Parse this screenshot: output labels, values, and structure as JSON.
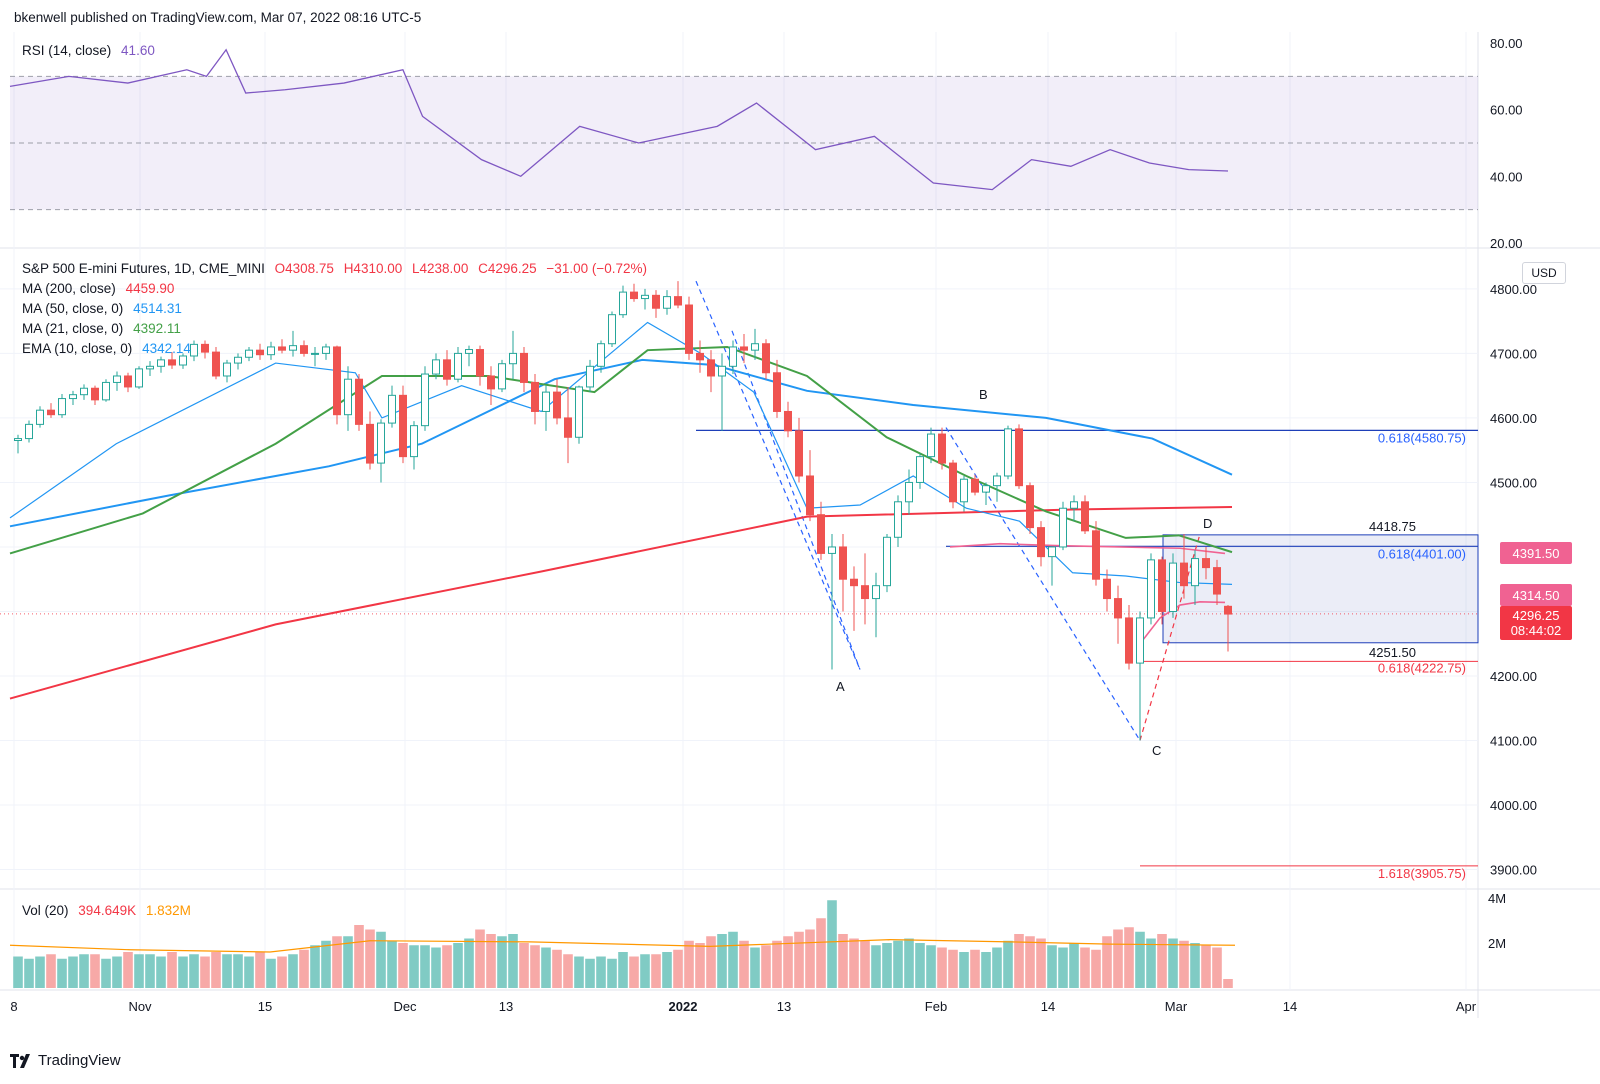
{
  "header": {
    "published": "bkenwell published on TradingView.com, Mar 07, 2022 08:16 UTC-5"
  },
  "rsi": {
    "label": "RSI (14, close)",
    "value": "41.60",
    "color": "#7e57c2",
    "axis_labels": [
      "80.00",
      "60.00",
      "40.00",
      "20.00"
    ]
  },
  "main": {
    "symbol": "S&P 500 E-mini Futures, 1D, CME_MINI",
    "ohlc": {
      "o": "O4308.75",
      "h": "H4310.00",
      "l": "L4238.00",
      "c": "C4296.25",
      "chg": "−31.00 (−0.72%)"
    },
    "mas": [
      {
        "label": "MA (200, close)",
        "value": "4459.90",
        "color": "#f23645"
      },
      {
        "label": "MA (50, close, 0)",
        "value": "4514.31",
        "color": "#2196f3"
      },
      {
        "label": "MA (21, close, 0)",
        "value": "4392.11",
        "color": "#43a047"
      },
      {
        "label": "EMA (10, close, 0)",
        "value": "4342.14",
        "color": "#2196f3"
      }
    ],
    "currency": "USD",
    "axis_labels": [
      "4800.00",
      "4700.00",
      "4600.00",
      "4500.00",
      "4200.00",
      "4100.00",
      "4000.00",
      "3900.00"
    ],
    "tags": [
      {
        "text": "4391.50",
        "color": "#f06292"
      },
      {
        "text": "4314.50",
        "color": "#f06292"
      },
      {
        "text": "4296.25",
        "sub": "08:44:02",
        "color": "#f23645"
      }
    ],
    "annotations": {
      "points": [
        "A",
        "B",
        "C",
        "D"
      ],
      "fib_4580": "0.618(4580.75)",
      "fib_4401": "0.618(4401.00)",
      "fib_4222": "0.618(4222.75)",
      "fib_3905": "1.618(3905.75)",
      "range_top": "4418.75",
      "range_bottom": "4251.50"
    }
  },
  "volume": {
    "label": "Vol (20)",
    "value": "394.649K",
    "ma_value": "1.832M",
    "axis_labels": [
      "4M",
      "2M"
    ]
  },
  "xaxis": [
    "8",
    "Nov",
    "15",
    "Dec",
    "13",
    "2022",
    "13",
    "Feb",
    "14",
    "Mar",
    "14",
    "Apr"
  ],
  "footer": {
    "brand": "TradingView"
  },
  "chart_data": {
    "type": "candlestick",
    "title": "S&P 500 E-mini Futures, 1D, CME_MINI",
    "ylim": [
      3850,
      4830
    ],
    "candles": [
      [
        4565,
        4574,
        4545,
        4568
      ],
      [
        4568,
        4596,
        4562,
        4590
      ],
      [
        4590,
        4618,
        4585,
        4612
      ],
      [
        4612,
        4623,
        4600,
        4605
      ],
      [
        4605,
        4637,
        4600,
        4630
      ],
      [
        4630,
        4642,
        4620,
        4636
      ],
      [
        4636,
        4652,
        4628,
        4646
      ],
      [
        4646,
        4650,
        4620,
        4628
      ],
      [
        4628,
        4660,
        4625,
        4655
      ],
      [
        4655,
        4672,
        4642,
        4665
      ],
      [
        4665,
        4670,
        4640,
        4648
      ],
      [
        4648,
        4680,
        4645,
        4676
      ],
      [
        4676,
        4688,
        4665,
        4680
      ],
      [
        4680,
        4695,
        4670,
        4690
      ],
      [
        4690,
        4702,
        4676,
        4682
      ],
      [
        4682,
        4700,
        4676,
        4696
      ],
      [
        4696,
        4720,
        4688,
        4714
      ],
      [
        4714,
        4720,
        4692,
        4702
      ],
      [
        4702,
        4710,
        4660,
        4665
      ],
      [
        4665,
        4690,
        4655,
        4685
      ],
      [
        4685,
        4700,
        4675,
        4694
      ],
      [
        4694,
        4710,
        4688,
        4705
      ],
      [
        4705,
        4715,
        4690,
        4698
      ],
      [
        4698,
        4718,
        4690,
        4710
      ],
      [
        4710,
        4722,
        4700,
        4705
      ],
      [
        4705,
        4735,
        4695,
        4712
      ],
      [
        4712,
        4720,
        4695,
        4700
      ],
      [
        4700,
        4710,
        4680,
        4700
      ],
      [
        4700,
        4715,
        4690,
        4710
      ],
      [
        4710,
        4712,
        4590,
        4605
      ],
      [
        4605,
        4680,
        4580,
        4660
      ],
      [
        4660,
        4668,
        4580,
        4590
      ],
      [
        4590,
        4610,
        4520,
        4530
      ],
      [
        4530,
        4598,
        4500,
        4592
      ],
      [
        4592,
        4650,
        4585,
        4635
      ],
      [
        4635,
        4650,
        4530,
        4540
      ],
      [
        4540,
        4595,
        4520,
        4588
      ],
      [
        4588,
        4680,
        4580,
        4668
      ],
      [
        4668,
        4700,
        4660,
        4690
      ],
      [
        4690,
        4705,
        4650,
        4660
      ],
      [
        4660,
        4710,
        4655,
        4700
      ],
      [
        4700,
        4712,
        4680,
        4706
      ],
      [
        4706,
        4712,
        4650,
        4665
      ],
      [
        4665,
        4680,
        4620,
        4645
      ],
      [
        4645,
        4690,
        4640,
        4684
      ],
      [
        4684,
        4735,
        4660,
        4700
      ],
      [
        4700,
        4710,
        4640,
        4655
      ],
      [
        4655,
        4668,
        4590,
        4610
      ],
      [
        4610,
        4650,
        4580,
        4640
      ],
      [
        4640,
        4660,
        4590,
        4600
      ],
      [
        4600,
        4648,
        4530,
        4570
      ],
      [
        4570,
        4650,
        4560,
        4648
      ],
      [
        4648,
        4690,
        4640,
        4680
      ],
      [
        4680,
        4720,
        4670,
        4715
      ],
      [
        4715,
        4765,
        4710,
        4760
      ],
      [
        4760,
        4805,
        4755,
        4795
      ],
      [
        4795,
        4808,
        4780,
        4785
      ],
      [
        4785,
        4800,
        4768,
        4790
      ],
      [
        4790,
        4798,
        4755,
        4770
      ],
      [
        4770,
        4798,
        4760,
        4788
      ],
      [
        4788,
        4812,
        4770,
        4775
      ],
      [
        4775,
        4788,
        4690,
        4700
      ],
      [
        4700,
        4720,
        4670,
        4690
      ],
      [
        4690,
        4705,
        4640,
        4665
      ],
      [
        4665,
        4700,
        4580,
        4680
      ],
      [
        4680,
        4720,
        4668,
        4710
      ],
      [
        4710,
        4730,
        4685,
        4705
      ],
      [
        4705,
        4738,
        4690,
        4715
      ],
      [
        4715,
        4722,
        4660,
        4670
      ],
      [
        4670,
        4690,
        4600,
        4610
      ],
      [
        4610,
        4625,
        4570,
        4580
      ],
      [
        4580,
        4600,
        4500,
        4510
      ],
      [
        4510,
        4550,
        4440,
        4450
      ],
      [
        4450,
        4470,
        4380,
        4390
      ],
      [
        4390,
        4420,
        4210,
        4400
      ],
      [
        4400,
        4420,
        4300,
        4350
      ],
      [
        4350,
        4370,
        4270,
        4340
      ],
      [
        4340,
        4390,
        4280,
        4320
      ],
      [
        4320,
        4360,
        4260,
        4340
      ],
      [
        4340,
        4420,
        4330,
        4415
      ],
      [
        4415,
        4480,
        4400,
        4470
      ],
      [
        4470,
        4520,
        4450,
        4500
      ],
      [
        4500,
        4545,
        4490,
        4540
      ],
      [
        4540,
        4585,
        4530,
        4575
      ],
      [
        4575,
        4585,
        4520,
        4530
      ],
      [
        4530,
        4535,
        4460,
        4470
      ],
      [
        4470,
        4510,
        4455,
        4505
      ],
      [
        4505,
        4512,
        4480,
        4485
      ],
      [
        4485,
        4500,
        4465,
        4495
      ],
      [
        4495,
        4515,
        4470,
        4510
      ],
      [
        4510,
        4588,
        4505,
        4583
      ],
      [
        4583,
        4590,
        4490,
        4495
      ],
      [
        4495,
        4500,
        4420,
        4430
      ],
      [
        4430,
        4440,
        4370,
        4385
      ],
      [
        4385,
        4400,
        4340,
        4400
      ],
      [
        4400,
        4470,
        4395,
        4460
      ],
      [
        4460,
        4480,
        4440,
        4470
      ],
      [
        4470,
        4480,
        4420,
        4425
      ],
      [
        4425,
        4440,
        4340,
        4350
      ],
      [
        4350,
        4365,
        4300,
        4320
      ],
      [
        4320,
        4340,
        4250,
        4290
      ],
      [
        4290,
        4310,
        4210,
        4220
      ],
      [
        4220,
        4300,
        4100,
        4290
      ],
      [
        4290,
        4390,
        4280,
        4380
      ],
      [
        4380,
        4385,
        4280,
        4300
      ],
      [
        4300,
        4390,
        4290,
        4375
      ],
      [
        4375,
        4420,
        4320,
        4340
      ],
      [
        4340,
        4395,
        4310,
        4382
      ],
      [
        4382,
        4400,
        4350,
        4368
      ],
      [
        4368,
        4380,
        4310,
        4327
      ],
      [
        4308,
        4310,
        4238,
        4296
      ]
    ],
    "series": [
      {
        "name": "MA (200, close)",
        "color": "#f23645",
        "values": [
          [
            0,
            4165
          ],
          [
            100,
            4280
          ],
          [
            200,
            4362
          ],
          [
            300,
            4447
          ],
          [
            400,
            4458
          ],
          [
            460,
            4462
          ]
        ]
      },
      {
        "name": "MA (50, close, 0)",
        "color": "#2196f3",
        "values": [
          [
            0,
            4432
          ],
          [
            60,
            4480
          ],
          [
            120,
            4525
          ],
          [
            155,
            4560
          ],
          [
            170,
            4590
          ],
          [
            205,
            4660
          ],
          [
            238,
            4690
          ],
          [
            265,
            4682
          ],
          [
            300,
            4642
          ],
          [
            340,
            4620
          ],
          [
            390,
            4600
          ],
          [
            430,
            4568
          ],
          [
            460,
            4512
          ]
        ]
      },
      {
        "name": "MA (21, close, 0)",
        "color": "#43a047",
        "values": [
          [
            0,
            4390
          ],
          [
            50,
            4452
          ],
          [
            100,
            4560
          ],
          [
            140,
            4665
          ],
          [
            180,
            4665
          ],
          [
            220,
            4640
          ],
          [
            240,
            4705
          ],
          [
            270,
            4710
          ],
          [
            300,
            4665
          ],
          [
            330,
            4570
          ],
          [
            360,
            4510
          ],
          [
            390,
            4455
          ],
          [
            420,
            4414
          ],
          [
            440,
            4418
          ],
          [
            460,
            4392
          ]
        ]
      },
      {
        "name": "EMA (10, close, 0)",
        "color": "#2196f3",
        "values": [
          [
            0,
            4445
          ],
          [
            40,
            4560
          ],
          [
            100,
            4685
          ],
          [
            130,
            4670
          ],
          [
            140,
            4600
          ],
          [
            170,
            4650
          ],
          [
            200,
            4610
          ],
          [
            240,
            4748
          ],
          [
            260,
            4700
          ],
          [
            280,
            4640
          ],
          [
            300,
            4460
          ],
          [
            320,
            4465
          ],
          [
            340,
            4510
          ],
          [
            360,
            4460
          ],
          [
            380,
            4440
          ],
          [
            400,
            4360
          ],
          [
            420,
            4355
          ],
          [
            440,
            4345
          ],
          [
            460,
            4342
          ]
        ]
      }
    ],
    "rsi": [
      [
        0,
        67
      ],
      [
        30,
        70
      ],
      [
        60,
        68
      ],
      [
        90,
        72
      ],
      [
        100,
        70
      ],
      [
        110,
        78
      ],
      [
        120,
        65
      ],
      [
        140,
        66
      ],
      [
        170,
        68
      ],
      [
        200,
        72
      ],
      [
        210,
        58
      ],
      [
        240,
        45
      ],
      [
        260,
        40
      ],
      [
        290,
        55
      ],
      [
        320,
        50
      ],
      [
        360,
        55
      ],
      [
        380,
        62
      ],
      [
        410,
        48
      ],
      [
        440,
        52
      ],
      [
        470,
        38
      ],
      [
        500,
        36
      ],
      [
        520,
        45
      ],
      [
        540,
        43
      ],
      [
        560,
        48
      ],
      [
        580,
        44
      ],
      [
        600,
        42
      ],
      [
        620,
        41.6
      ]
    ],
    "volume_bars": [
      1.4,
      1.3,
      1.4,
      1.5,
      1.3,
      1.4,
      1.5,
      1.5,
      1.3,
      1.4,
      1.6,
      1.5,
      1.5,
      1.4,
      1.6,
      1.4,
      1.5,
      1.4,
      1.6,
      1.5,
      1.5,
      1.4,
      1.6,
      1.3,
      1.4,
      1.5,
      1.7,
      1.9,
      2.1,
      2.3,
      2.3,
      2.8,
      2.6,
      2.5,
      2.1,
      2.0,
      1.9,
      1.9,
      1.8,
      1.9,
      2.0,
      2.2,
      2.6,
      2.4,
      2.3,
      2.4,
      2.0,
      1.9,
      1.8,
      1.7,
      1.5,
      1.4,
      1.3,
      1.4,
      1.3,
      1.6,
      1.4,
      1.5,
      1.5,
      1.6,
      1.7,
      2.1,
      2.0,
      2.3,
      2.4,
      2.5,
      2.1,
      1.8,
      1.9,
      2.1,
      2.3,
      2.5,
      2.6,
      3.1,
      3.9,
      2.4,
      2.2,
      2.1,
      1.9,
      2.0,
      2.1,
      2.2,
      2.0,
      1.9,
      1.8,
      1.7,
      1.6,
      1.7,
      1.6,
      1.8,
      2.1,
      2.4,
      2.3,
      2.2,
      1.9,
      1.8,
      2.0,
      1.8,
      1.7,
      2.3,
      2.6,
      2.7,
      2.5,
      2.2,
      2.4,
      2.2,
      2.1,
      2.0,
      1.9,
      1.8,
      0.4
    ]
  }
}
